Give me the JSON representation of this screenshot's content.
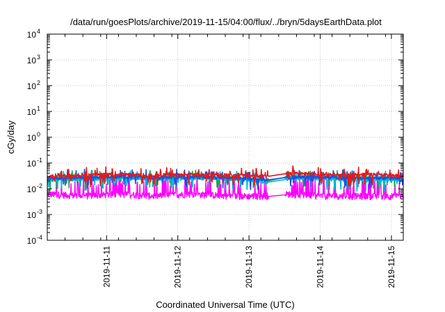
{
  "chart_data": {
    "type": "line",
    "title": "/data/run/goesPlots/archive/2019-11-15/04:00/flux/../bryn/5daysEarthData.plot",
    "xlabel": "Coordinated Universal Time (UTC)",
    "ylabel": "cGy/day",
    "y_scale": "log",
    "ylim": [
      0.0001,
      10000
    ],
    "y_ticks": [
      {
        "base": "10",
        "exp": "-4",
        "value": 0.0001
      },
      {
        "base": "10",
        "exp": "-3",
        "value": 0.001
      },
      {
        "base": "10",
        "exp": "-2",
        "value": 0.01
      },
      {
        "base": "10",
        "exp": "-1",
        "value": 0.1
      },
      {
        "base": "10",
        "exp": "0",
        "value": 1
      },
      {
        "base": "10",
        "exp": "1",
        "value": 10
      },
      {
        "base": "10",
        "exp": "2",
        "value": 100
      },
      {
        "base": "10",
        "exp": "3",
        "value": 1000
      },
      {
        "base": "10",
        "exp": "4",
        "value": 10000
      }
    ],
    "xlim": [
      "2019-11-10 04:00",
      "2019-11-15 04:00"
    ],
    "x_ticks": [
      "2019-11-11",
      "2019-11-12",
      "2019-11-13",
      "2019-11-14",
      "2019-11-15"
    ],
    "grid": true,
    "series": [
      {
        "color": "#e31a1c",
        "values": [
          [
            0,
            0.03
          ],
          [
            0.5,
            0.034
          ],
          [
            1.0,
            0.036
          ],
          [
            1.5,
            0.033
          ],
          [
            2.0,
            0.035
          ],
          [
            2.6,
            0.034
          ],
          [
            3.1,
            0.03
          ],
          [
            3.4,
            0.04
          ],
          [
            3.8,
            0.036
          ],
          [
            4.3,
            0.034
          ],
          [
            4.5,
            0.036
          ],
          [
            5.0,
            0.031
          ]
        ]
      },
      {
        "color": "#1aa64b",
        "values": [
          [
            0,
            0.024
          ],
          [
            0.5,
            0.026
          ],
          [
            1.0,
            0.028
          ],
          [
            1.5,
            0.026
          ],
          [
            2.0,
            0.027
          ],
          [
            2.6,
            0.026
          ],
          [
            3.1,
            0.02
          ],
          [
            3.4,
            0.03
          ],
          [
            3.8,
            0.027
          ],
          [
            4.3,
            0.026
          ],
          [
            4.5,
            0.027
          ],
          [
            5.0,
            0.024
          ]
        ]
      },
      {
        "color": "#1f4fe0",
        "values": [
          [
            0,
            0.025
          ],
          [
            0.5,
            0.027
          ],
          [
            1.0,
            0.029
          ],
          [
            1.5,
            0.027
          ],
          [
            2.0,
            0.028
          ],
          [
            2.6,
            0.027
          ],
          [
            3.1,
            0.022
          ],
          [
            3.4,
            0.028
          ],
          [
            3.8,
            0.029
          ],
          [
            4.3,
            0.024
          ],
          [
            4.5,
            0.026
          ],
          [
            5.0,
            0.025
          ]
        ]
      },
      {
        "color": "#ff00ff",
        "values": [
          [
            0,
            0.006
          ],
          [
            0.5,
            0.005
          ],
          [
            1.0,
            0.006
          ],
          [
            1.5,
            0.005
          ],
          [
            2.0,
            0.006
          ],
          [
            2.6,
            0.005
          ],
          [
            3.1,
            0.005
          ],
          [
            3.4,
            0.006
          ],
          [
            3.8,
            0.005
          ],
          [
            4.3,
            0.005
          ],
          [
            4.5,
            0.005
          ],
          [
            5.0,
            0.005
          ]
        ]
      },
      {
        "color": "#00b7d4",
        "values": [
          [
            0,
            0.022
          ],
          [
            0.5,
            0.024
          ],
          [
            1.0,
            0.025
          ],
          [
            1.5,
            0.024
          ],
          [
            2.0,
            0.025
          ],
          [
            2.6,
            0.024
          ],
          [
            3.1,
            0.018
          ],
          [
            3.4,
            0.024
          ],
          [
            3.8,
            0.025
          ],
          [
            4.3,
            0.022
          ],
          [
            4.5,
            0.023
          ],
          [
            5.0,
            0.022
          ]
        ]
      }
    ]
  }
}
